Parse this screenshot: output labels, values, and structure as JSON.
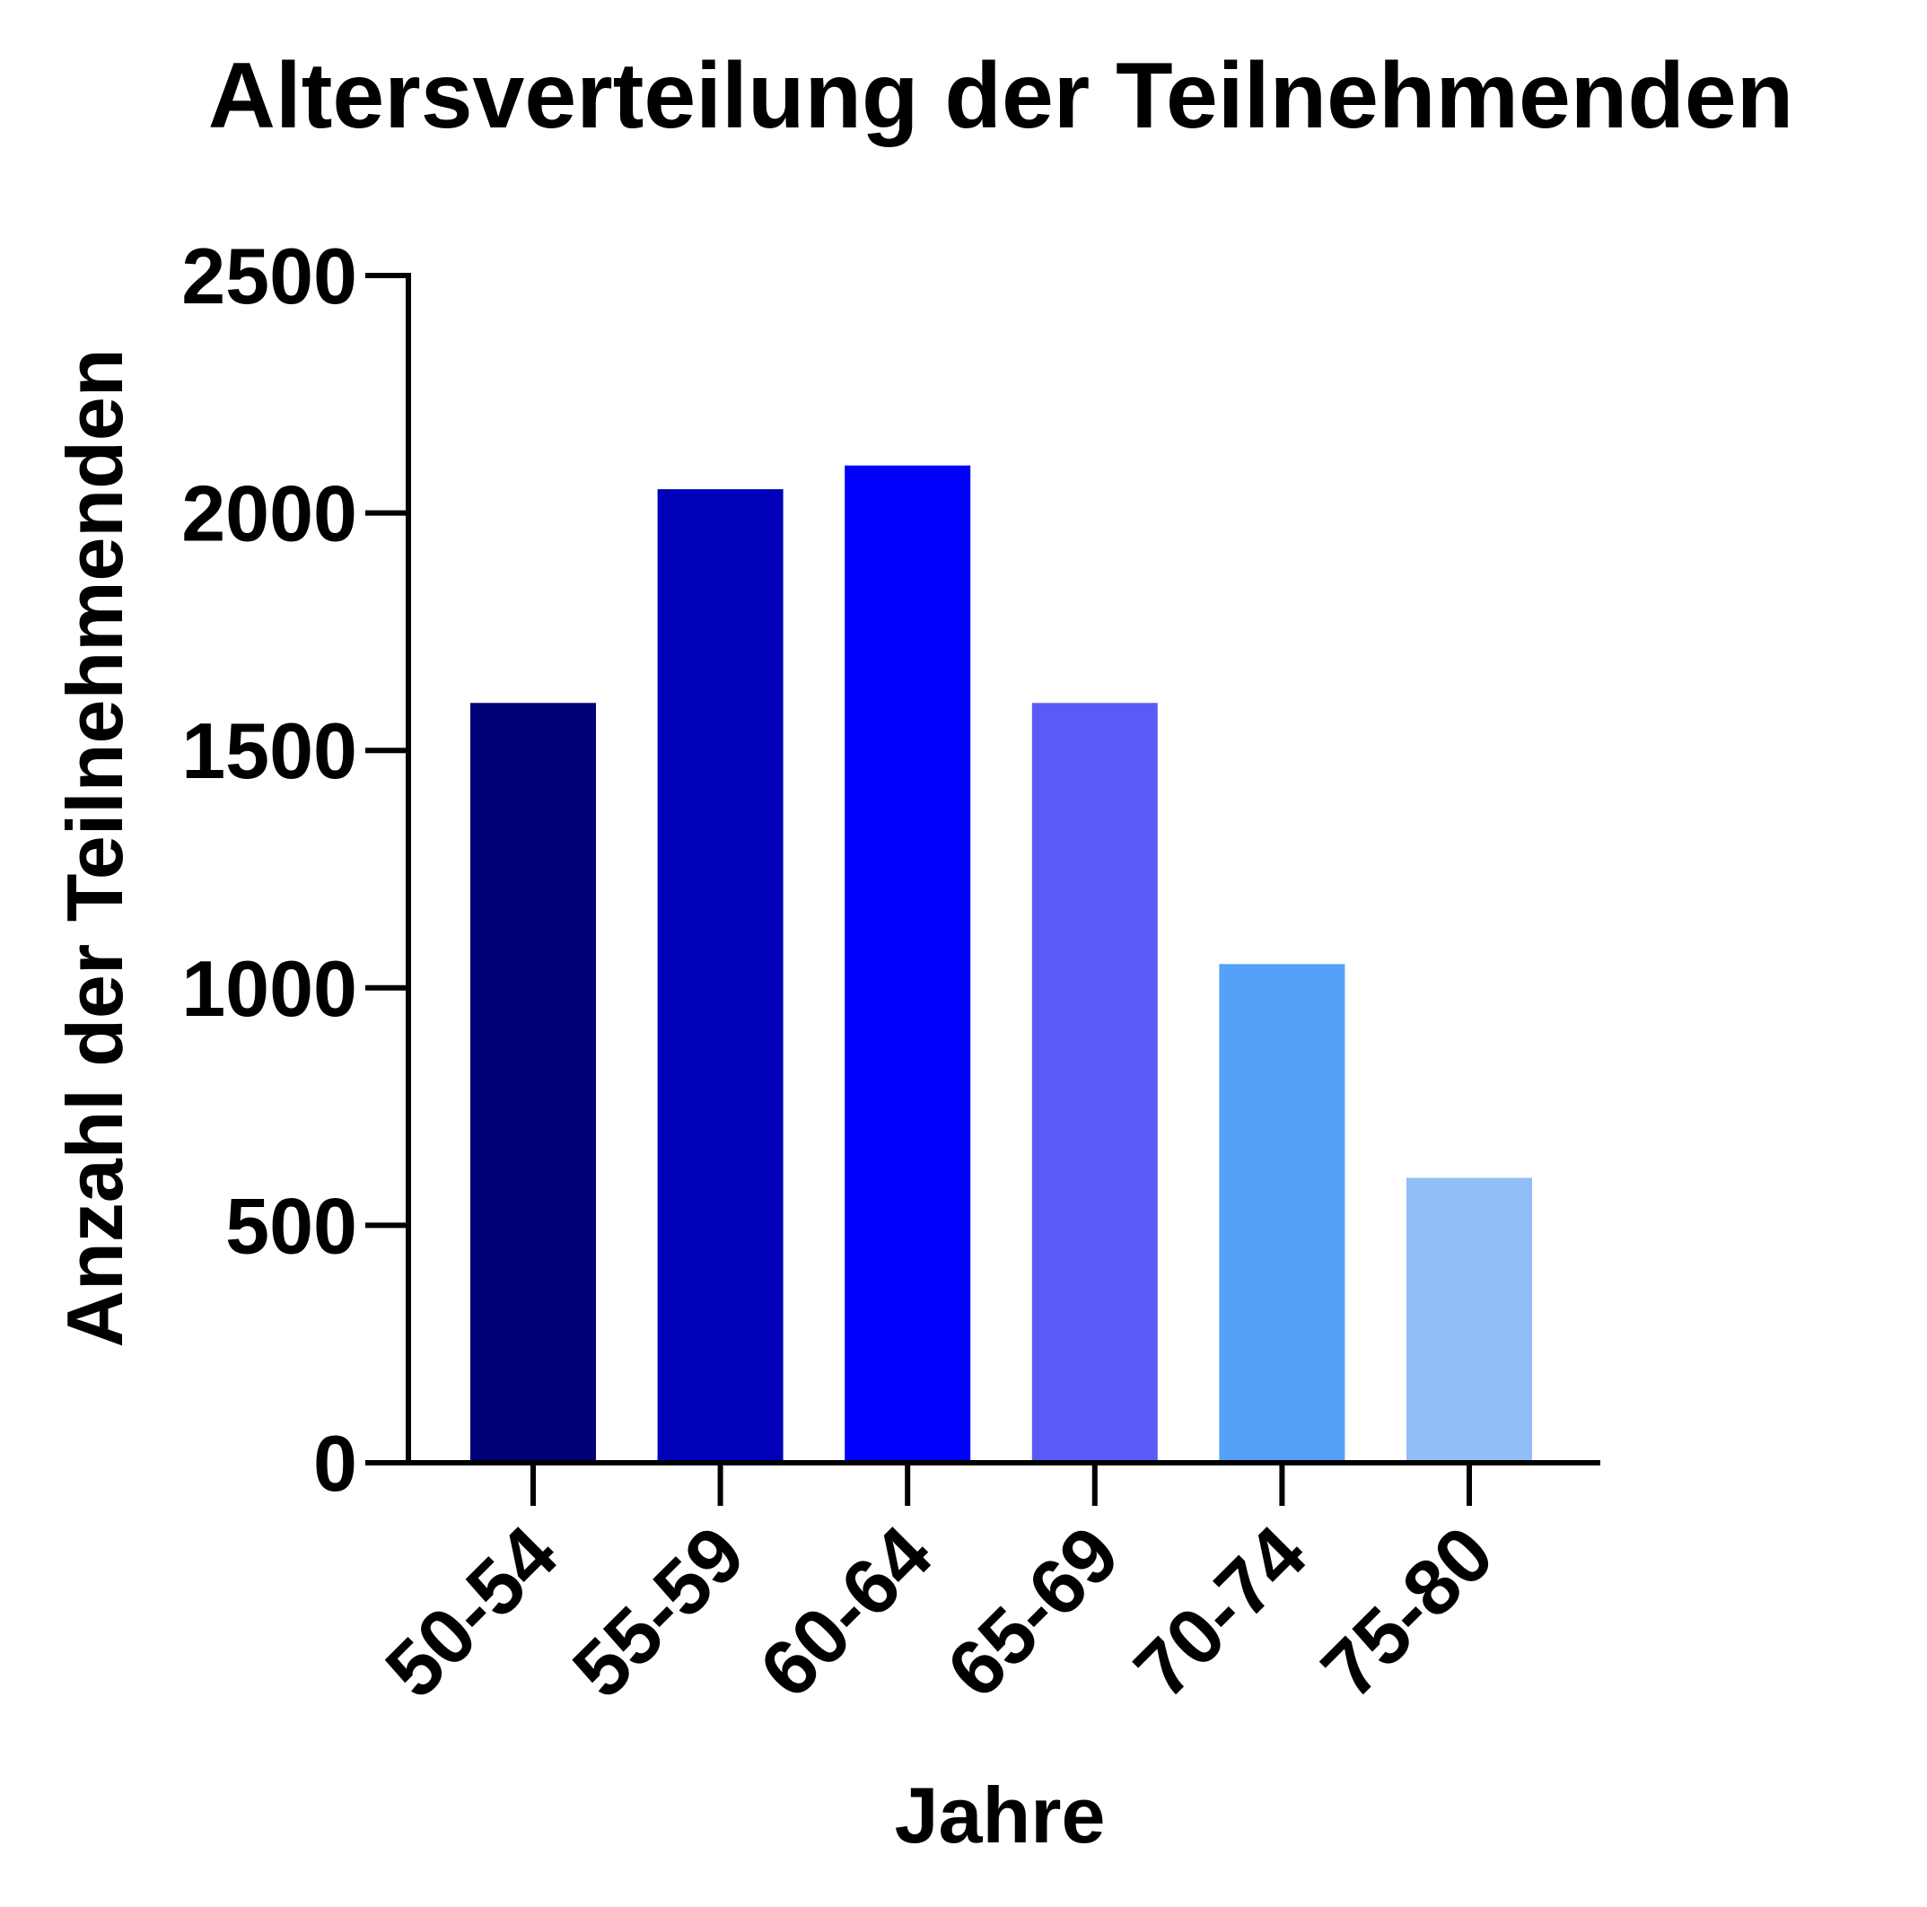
{
  "chart_data": {
    "type": "bar",
    "title": "Altersverteilung der Teilnehmenden",
    "xlabel": "Jahre",
    "ylabel": "Anzahl der Teilnehmenden",
    "categories": [
      "50-54",
      "55-59",
      "60-64",
      "65-69",
      "70-74",
      "75-80"
    ],
    "values": [
      1600,
      2050,
      2100,
      1600,
      1050,
      600
    ],
    "colors": [
      "#000077",
      "#0000bb",
      "#0000ff",
      "#5a5af7",
      "#56a0fa",
      "#92bef6"
    ],
    "ylim": [
      0,
      2500
    ],
    "yticks": [
      0,
      500,
      1000,
      1500,
      2000,
      2500
    ],
    "grid": false,
    "legend": "none"
  }
}
